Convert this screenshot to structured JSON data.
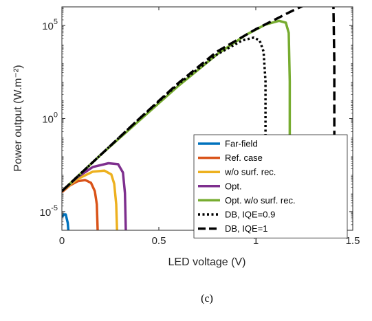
{
  "chart_data": {
    "type": "line",
    "title": "",
    "xlabel": "LED voltage (V)",
    "ylabel": "Power output (W.m⁻²)",
    "caption": "(c)",
    "xlim": [
      0,
      1.5
    ],
    "ylim_log10": [
      -6,
      6
    ],
    "yscale": "log",
    "x_ticks": [
      0,
      0.5,
      1,
      1.5
    ],
    "x_tick_labels": [
      "0",
      "0.5",
      "1",
      "1.5"
    ],
    "y_ticks_log10": [
      -5,
      0,
      5
    ],
    "y_tick_labels": [
      {
        "base": "10",
        "exp": "-5"
      },
      {
        "base": "10",
        "exp": "0"
      },
      {
        "base": "10",
        "exp": "5"
      }
    ],
    "grid": false,
    "legend_position": "lower-right",
    "series": [
      {
        "name": "Far-field",
        "color": "#0072BD",
        "style": "solid",
        "points": [
          [
            0,
            -5.3
          ],
          [
            0.01,
            -5.15
          ],
          [
            0.02,
            -5.15
          ],
          [
            0.03,
            -5.6
          ],
          [
            0.035,
            -6.2
          ]
        ]
      },
      {
        "name": "Ref. case",
        "color": "#D95319",
        "style": "solid",
        "points": [
          [
            0,
            -3.95
          ],
          [
            0.04,
            -3.6
          ],
          [
            0.08,
            -3.37
          ],
          [
            0.12,
            -3.3
          ],
          [
            0.15,
            -3.45
          ],
          [
            0.17,
            -3.9
          ],
          [
            0.18,
            -4.6
          ],
          [
            0.185,
            -6.2
          ]
        ]
      },
      {
        "name": "w/o surf. rec.",
        "color": "#EDB120",
        "style": "solid",
        "points": [
          [
            0,
            -3.9
          ],
          [
            0.08,
            -3.25
          ],
          [
            0.16,
            -2.85
          ],
          [
            0.22,
            -2.8
          ],
          [
            0.255,
            -3.0
          ],
          [
            0.27,
            -3.5
          ],
          [
            0.28,
            -4.6
          ],
          [
            0.285,
            -6.2
          ]
        ]
      },
      {
        "name": "Opt.",
        "color": "#7E2F8E",
        "style": "solid",
        "points": [
          [
            0,
            -3.9
          ],
          [
            0.08,
            -3.15
          ],
          [
            0.16,
            -2.6
          ],
          [
            0.24,
            -2.4
          ],
          [
            0.29,
            -2.45
          ],
          [
            0.315,
            -2.9
          ],
          [
            0.325,
            -4.0
          ],
          [
            0.33,
            -6.2
          ]
        ]
      },
      {
        "name": "Opt. w/o surf. rec.",
        "color": "#77AC30",
        "style": "solid",
        "points": [
          [
            0,
            -3.9
          ],
          [
            0.2,
            -1.95
          ],
          [
            0.4,
            -0.1
          ],
          [
            0.6,
            1.75
          ],
          [
            0.8,
            3.45
          ],
          [
            0.95,
            4.5
          ],
          [
            1.05,
            5.05
          ],
          [
            1.12,
            5.25
          ],
          [
            1.155,
            5.15
          ],
          [
            1.17,
            4.6
          ],
          [
            1.175,
            2.0
          ],
          [
            1.175,
            -6.2
          ]
        ]
      },
      {
        "name": "DB, IQE=0.9",
        "color": "#000000",
        "style": "dotted",
        "points": [
          [
            0,
            -3.9
          ],
          [
            0.2,
            -1.95
          ],
          [
            0.4,
            0.0
          ],
          [
            0.6,
            1.85
          ],
          [
            0.8,
            3.45
          ],
          [
            0.93,
            4.2
          ],
          [
            0.99,
            4.35
          ],
          [
            1.02,
            4.2
          ],
          [
            1.04,
            3.6
          ],
          [
            1.05,
            2.0
          ],
          [
            1.05,
            -6.2
          ]
        ]
      },
      {
        "name": "DB, IQE=1",
        "color": "#000000",
        "style": "dashed",
        "points": [
          [
            0,
            -3.9
          ],
          [
            0.2,
            -1.95
          ],
          [
            0.4,
            0.0
          ],
          [
            0.6,
            1.9
          ],
          [
            0.8,
            3.6
          ],
          [
            1.0,
            4.8
          ],
          [
            1.2,
            5.85
          ],
          [
            1.33,
            6.45
          ],
          [
            1.385,
            6.55
          ],
          [
            1.4,
            6.3
          ],
          [
            1.405,
            3.0
          ],
          [
            1.405,
            -6.2
          ]
        ]
      }
    ]
  }
}
